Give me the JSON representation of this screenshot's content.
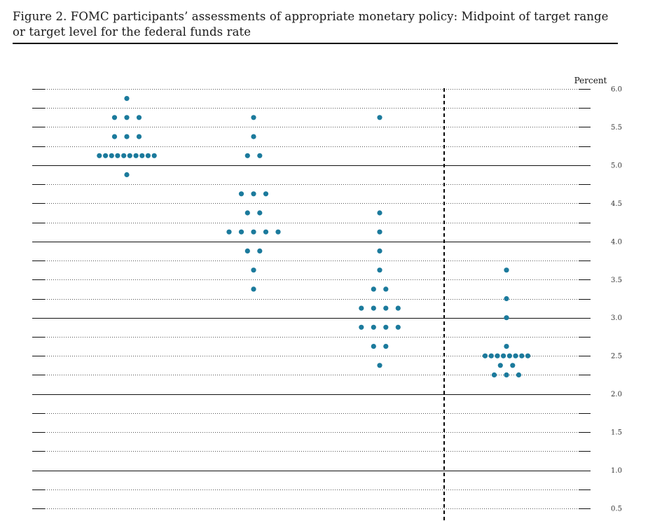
{
  "figure": {
    "title": "Figure 2.  FOMC participants’ assessments of appropriate monetary policy:  Midpoint of target range or target level for the federal funds rate"
  },
  "chart_data": {
    "type": "scatter",
    "title": "Figure 2.  FOMC participants’ assessments of appropriate monetary policy:  Midpoint of target range or target level for the federal funds rate",
    "ylabel": "Percent",
    "ylim": [
      0.5,
      6.0
    ],
    "ytick_step": 0.25,
    "ytick_labels": [
      "6.0",
      "5.5",
      "5.0",
      "4.5",
      "4.0",
      "3.5",
      "3.0",
      "2.5",
      "2.0",
      "1.5",
      "1.0",
      "0.5"
    ],
    "solid_gridlines_at": [
      1.0,
      2.0,
      3.0,
      4.0,
      5.0
    ],
    "grid": "dotted at every 0.25",
    "dot_color": "#1b7a9c",
    "separator": "dashed vertical line before the last column",
    "columns": [
      {
        "index": 1,
        "points": [
          {
            "rate": 5.875,
            "count": 1
          },
          {
            "rate": 5.625,
            "count": 3
          },
          {
            "rate": 5.375,
            "count": 3
          },
          {
            "rate": 5.125,
            "count": 10
          },
          {
            "rate": 4.875,
            "count": 1
          }
        ]
      },
      {
        "index": 2,
        "points": [
          {
            "rate": 5.625,
            "count": 1
          },
          {
            "rate": 5.375,
            "count": 1
          },
          {
            "rate": 5.125,
            "count": 2
          },
          {
            "rate": 4.625,
            "count": 3
          },
          {
            "rate": 4.375,
            "count": 2
          },
          {
            "rate": 4.125,
            "count": 5
          },
          {
            "rate": 3.875,
            "count": 2
          },
          {
            "rate": 3.625,
            "count": 1
          },
          {
            "rate": 3.375,
            "count": 1
          }
        ]
      },
      {
        "index": 3,
        "points": [
          {
            "rate": 5.625,
            "count": 1
          },
          {
            "rate": 4.375,
            "count": 1
          },
          {
            "rate": 4.125,
            "count": 1
          },
          {
            "rate": 3.875,
            "count": 1
          },
          {
            "rate": 3.625,
            "count": 1
          },
          {
            "rate": 3.375,
            "count": 2
          },
          {
            "rate": 3.125,
            "count": 4
          },
          {
            "rate": 2.875,
            "count": 4
          },
          {
            "rate": 2.625,
            "count": 2
          },
          {
            "rate": 2.375,
            "count": 1
          }
        ]
      },
      {
        "index": 4,
        "points": [
          {
            "rate": 3.625,
            "count": 1
          },
          {
            "rate": 3.25,
            "count": 1
          },
          {
            "rate": 3.0,
            "count": 1
          },
          {
            "rate": 2.625,
            "count": 1
          },
          {
            "rate": 2.5,
            "count": 8
          },
          {
            "rate": 2.375,
            "count": 2
          },
          {
            "rate": 2.25,
            "count": 3
          }
        ]
      }
    ]
  }
}
